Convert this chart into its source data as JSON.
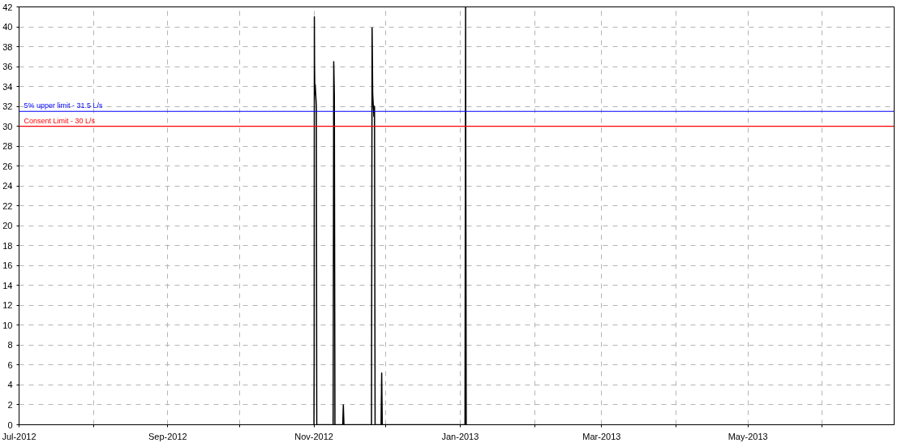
{
  "chart_data": {
    "type": "line",
    "x": [
      "2012-11-01T00:00",
      "2012-11-01T02:00",
      "2012-11-01T04:00",
      "2012-11-01T06:00",
      "2012-11-01T08:00",
      "2012-11-01T10:00",
      "2012-11-01T12:00",
      "2012-11-01T16:00",
      "2012-11-02T00:00",
      "2012-11-02T04:00",
      "2012-11-09T00:00",
      "2012-11-09T06:00",
      "2012-11-09T12:00",
      "2012-11-09T18:00",
      "2012-11-13T00:00",
      "2012-11-13T06:00",
      "2012-11-13T12:00",
      "2012-11-25T00:00",
      "2012-11-25T06:00",
      "2012-11-25T12:00",
      "2012-11-25T18:00",
      "2012-11-26T00:00",
      "2012-11-26T06:00",
      "2012-11-26T12:00",
      "2012-11-29T00:00",
      "2012-11-29T06:00",
      "2012-11-29T12:00",
      "2013-01-03T00:00",
      "2013-01-03T06:00",
      "2013-01-03T12:00"
    ],
    "series": [
      {
        "color": "#000000",
        "values": [
          0,
          6.6,
          41.0,
          36,
          34.4,
          33.2,
          34.2,
          33.5,
          32,
          0,
          0,
          36.5,
          33.1,
          0,
          0,
          2,
          0,
          0,
          39.9,
          33.2,
          32.1,
          31.0,
          32,
          0,
          0,
          5.2,
          0,
          0,
          42,
          0
        ]
      }
    ],
    "xlim": [
      "2012-07-01",
      "2013-07-01"
    ],
    "xticks": [
      {
        "value": "2012-07-01",
        "label": "Jul-2012"
      },
      {
        "value": "2012-08-01",
        "label": null
      },
      {
        "value": "2012-09-01",
        "label": "Sep-2012"
      },
      {
        "value": "2012-10-01",
        "label": null
      },
      {
        "value": "2012-11-01",
        "label": "Nov-2012"
      },
      {
        "value": "2012-12-01",
        "label": null
      },
      {
        "value": "2013-01-01",
        "label": "Jan-2013"
      },
      {
        "value": "2013-02-01",
        "label": null
      },
      {
        "value": "2013-03-01",
        "label": "Mar-2013"
      },
      {
        "value": "2013-04-01",
        "label": null
      },
      {
        "value": "2013-05-01",
        "label": "May-2013"
      },
      {
        "value": "2013-06-01",
        "label": null
      }
    ],
    "ylim": [
      0,
      42
    ],
    "yticks": [
      0,
      2,
      4,
      6,
      8,
      10,
      12,
      14,
      16,
      18,
      20,
      22,
      24,
      26,
      28,
      30,
      32,
      34,
      36,
      38,
      40,
      42
    ],
    "grid": true,
    "ref_lines": [
      {
        "axis": "y",
        "value": 31.5,
        "label": "5% upper limit - 31.5 L/s",
        "color": "#0000ff"
      },
      {
        "axis": "y",
        "value": 30,
        "label": "Consent Limit - 30 L/s",
        "color": "#ff0000"
      }
    ]
  }
}
